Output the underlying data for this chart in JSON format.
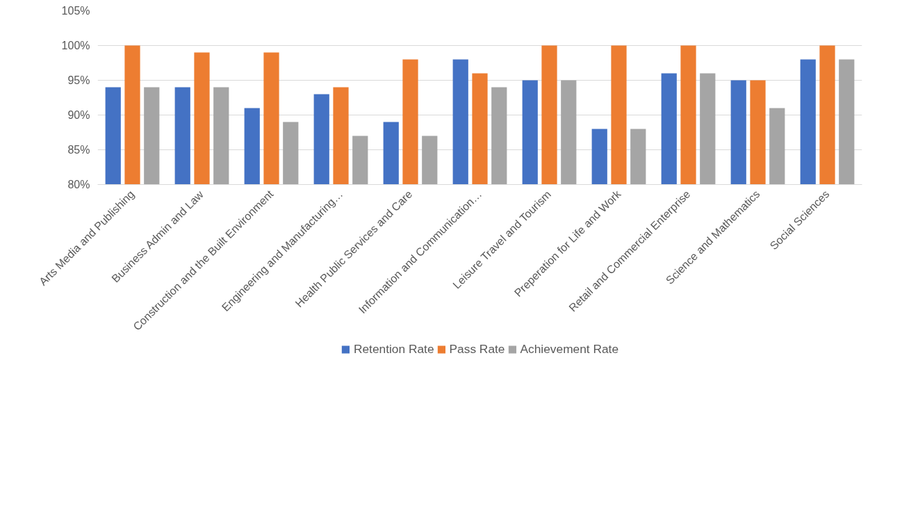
{
  "chart_data": {
    "type": "bar",
    "categories": [
      "Arts Media and Publishing",
      "Business Admin and Law",
      "Construction and the Built Environment",
      "Engineering and Manufacturing…",
      "Health Public Services and Care",
      "Information and Communication…",
      "Leisure Travel and Tourism",
      "Preperation for Life and Work",
      "Retail and Commercial Enterprise",
      "Science and Mathematics",
      "Social Sciences"
    ],
    "series": [
      {
        "name": "Retention Rate",
        "color": "#4472c4",
        "values": [
          94,
          94,
          91,
          93,
          89,
          98,
          95,
          88,
          96,
          95,
          98
        ]
      },
      {
        "name": "Pass Rate",
        "color": "#ed7d31",
        "values": [
          100,
          99,
          99,
          94,
          98,
          96,
          100,
          100,
          100,
          95,
          100
        ]
      },
      {
        "name": "Achievement Rate",
        "color": "#a5a5a5",
        "values": [
          94,
          94,
          89,
          87,
          87,
          94,
          95,
          88,
          96,
          91,
          98
        ]
      }
    ],
    "ylim": [
      80,
      105
    ],
    "yticks": [
      {
        "value": 80,
        "label": "80%"
      },
      {
        "value": 85,
        "label": "85%"
      },
      {
        "value": 90,
        "label": "90%"
      },
      {
        "value": 95,
        "label": "95%"
      },
      {
        "value": 100,
        "label": "100%"
      },
      {
        "value": 105,
        "label": "105%"
      }
    ],
    "grid": "y",
    "legend": "bottom"
  }
}
